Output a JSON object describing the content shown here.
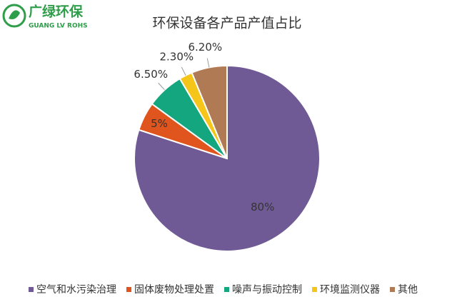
{
  "logo": {
    "name": "广绿环保",
    "subtitle": "GUANG LV ROHS"
  },
  "chart_data": {
    "type": "pie",
    "title": "环保设备各产品产值占比",
    "categories": [
      "空气和水污染治理",
      "固体废物处理处置",
      "噪声与振动控制",
      "环境监测仪器",
      "其他"
    ],
    "values": [
      80,
      5,
      6.5,
      2.3,
      6.2
    ],
    "value_labels": [
      "80%",
      "5%",
      "6.50%",
      "2.30%",
      "6.20%"
    ],
    "colors": [
      "#6f5a96",
      "#e0551d",
      "#14a67e",
      "#f5c51a",
      "#b07a54"
    ],
    "legend": "bottom"
  }
}
